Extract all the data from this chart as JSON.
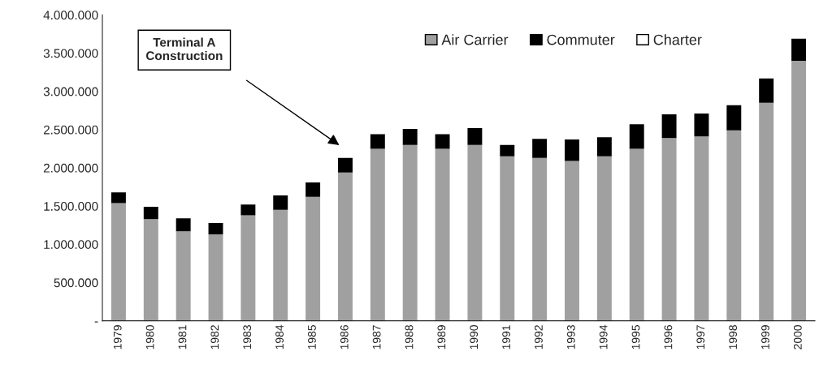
{
  "chart_data": {
    "type": "bar",
    "stacked": true,
    "categories": [
      "1979",
      "1980",
      "1981",
      "1982",
      "1983",
      "1984",
      "1985",
      "1986",
      "1987",
      "1988",
      "1989",
      "1990",
      "1991",
      "1992",
      "1993",
      "1994",
      "1995",
      "1996",
      "1997",
      "1998",
      "1999",
      "2000"
    ],
    "series": [
      {
        "name": "Air Carrier",
        "color": "#a0a0a0",
        "values": [
          1540000,
          1330000,
          1170000,
          1130000,
          1380000,
          1450000,
          1620000,
          1940000,
          2250000,
          2300000,
          2250000,
          2300000,
          2150000,
          2130000,
          2090000,
          2150000,
          2250000,
          2390000,
          2410000,
          2490000,
          2850000,
          3400000
        ]
      },
      {
        "name": "Commuter",
        "color": "#000000",
        "values": [
          140000,
          160000,
          170000,
          150000,
          140000,
          190000,
          190000,
          190000,
          190000,
          210000,
          190000,
          220000,
          150000,
          250000,
          280000,
          250000,
          320000,
          310000,
          300000,
          330000,
          320000,
          290000
        ]
      },
      {
        "name": "Charter",
        "color": "#ffffff",
        "values": [
          0,
          0,
          0,
          0,
          0,
          0,
          0,
          0,
          0,
          0,
          0,
          0,
          0,
          0,
          0,
          0,
          0,
          0,
          0,
          0,
          0,
          0
        ]
      }
    ],
    "ylim": [
      0,
      4000000
    ],
    "yticks": [
      {
        "value": 0,
        "label": "-"
      },
      {
        "value": 500000,
        "label": "500.000"
      },
      {
        "value": 1000000,
        "label": "1.000.000"
      },
      {
        "value": 1500000,
        "label": "1.500.000"
      },
      {
        "value": 2000000,
        "label": "2.000.000"
      },
      {
        "value": 2500000,
        "label": "2.500.000"
      },
      {
        "value": 3000000,
        "label": "3.000.000"
      },
      {
        "value": 3500000,
        "label": "3.500.000"
      },
      {
        "value": 4000000,
        "label": "4.000.000"
      }
    ],
    "annotations": [
      "Terminal A\nConstruction"
    ],
    "grid": false,
    "legend": "top right"
  }
}
